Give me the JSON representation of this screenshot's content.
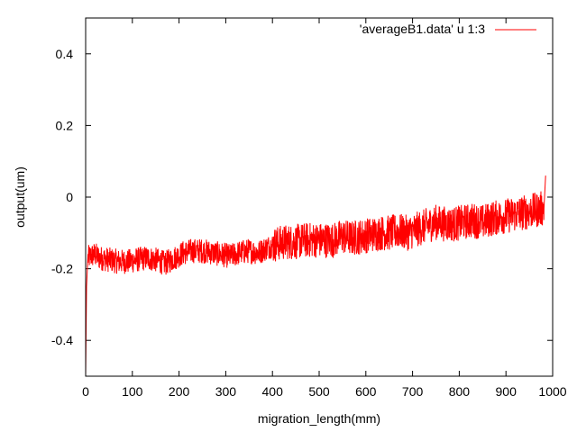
{
  "chart_data": {
    "type": "line",
    "title": "",
    "xlabel": "migration_length(mm)",
    "ylabel": "output(um)",
    "xlim": [
      0,
      1000
    ],
    "ylim": [
      -0.5,
      0.5
    ],
    "x_ticks": [
      0,
      100,
      200,
      300,
      400,
      500,
      600,
      700,
      800,
      900,
      1000
    ],
    "y_ticks": [
      -0.4,
      -0.2,
      0,
      0.2,
      0.4
    ],
    "x_tick_labels": [
      "0",
      "100",
      "200",
      "300",
      "400",
      "500",
      "600",
      "700",
      "800",
      "900",
      "1000"
    ],
    "y_tick_labels": [
      "-0.4",
      "-0.2",
      "0",
      "0.2",
      "0.4"
    ],
    "grid": false,
    "legend_position": "top-right",
    "series": [
      {
        "name": "'averageB1.data' u 1:3",
        "color": "#ff0000",
        "x": [
          0,
          2,
          5,
          10,
          20,
          30,
          50,
          70,
          90,
          110,
          130,
          150,
          170,
          190,
          210,
          230,
          250,
          270,
          290,
          310,
          330,
          350,
          370,
          390,
          410,
          430,
          450,
          470,
          490,
          510,
          530,
          550,
          570,
          590,
          610,
          630,
          650,
          670,
          690,
          710,
          730,
          750,
          770,
          790,
          810,
          830,
          850,
          870,
          890,
          910,
          930,
          950,
          970,
          982,
          985
        ],
        "y": [
          -0.5,
          -0.25,
          -0.17,
          -0.165,
          -0.16,
          -0.17,
          -0.175,
          -0.18,
          -0.18,
          -0.175,
          -0.17,
          -0.175,
          -0.185,
          -0.17,
          -0.155,
          -0.15,
          -0.15,
          -0.155,
          -0.16,
          -0.165,
          -0.155,
          -0.15,
          -0.155,
          -0.14,
          -0.13,
          -0.125,
          -0.125,
          -0.12,
          -0.12,
          -0.12,
          -0.12,
          -0.11,
          -0.115,
          -0.11,
          -0.105,
          -0.1,
          -0.1,
          -0.095,
          -0.1,
          -0.09,
          -0.08,
          -0.07,
          -0.075,
          -0.075,
          -0.07,
          -0.065,
          -0.07,
          -0.06,
          -0.055,
          -0.05,
          -0.045,
          -0.04,
          -0.035,
          -0.03,
          0.06
        ]
      }
    ]
  }
}
